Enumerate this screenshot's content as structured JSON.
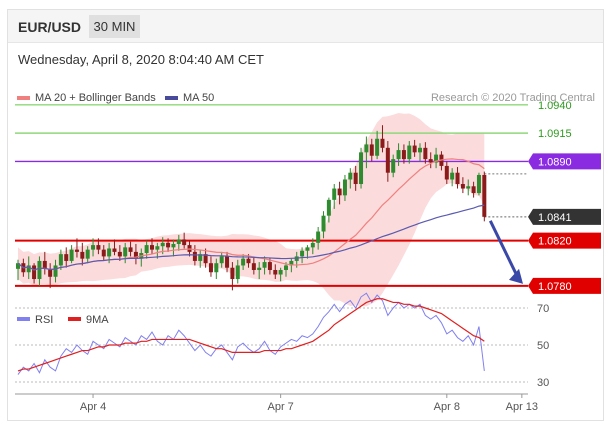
{
  "header": {
    "pair": "EUR/USD",
    "interval": "30 MIN"
  },
  "timestamp": "Wednesday, April 8, 2020 8:04:40 AM CET",
  "credit": "Research © 2020 Trading Central",
  "colors": {
    "candle_up": "#2e8b2e",
    "candle_down": "#8b1a1a",
    "bollinger_band": "#f9cfcf",
    "ma20": "#f08080",
    "ma50": "#5a5ab0",
    "resistance": "#8fd87a",
    "pivot": "#8a2be2",
    "support": "#e00000",
    "price": "#333333",
    "arrow": "#3a48a8",
    "rsi": "#8080f0",
    "rsi_ma": "#e02020"
  },
  "chart_data": [
    {
      "type": "candlestick",
      "title": "",
      "xlabel": "",
      "ylabel": "",
      "ylim": [
        1.0771,
        1.0954
      ],
      "x_ticks": [
        {
          "label": "Apr 4",
          "index": 14
        },
        {
          "label": "Apr 7",
          "index": 49
        },
        {
          "label": "Apr 8",
          "index": 80
        },
        {
          "label": "Apr 13",
          "index": 94
        }
      ],
      "legend": [
        {
          "label": "MA 20 + Bollinger Bands",
          "color": "#f08080"
        },
        {
          "label": "MA 50",
          "color": "#4a4a9c"
        }
      ],
      "levels": [
        {
          "label": "1.0940",
          "value": 1.094,
          "role": "resistance",
          "color": "#8fd87a",
          "tag": false
        },
        {
          "label": "1.0915",
          "value": 1.0915,
          "role": "resistance",
          "color": "#8fd87a",
          "tag": false
        },
        {
          "label": "1.0890",
          "value": 1.089,
          "role": "pivot",
          "color": "#8a2be2",
          "tag": true
        },
        {
          "label": "1.0820",
          "value": 1.082,
          "role": "support",
          "color": "#e00000",
          "tag": true
        },
        {
          "label": "1.0780",
          "value": 1.078,
          "role": "support",
          "color": "#e00000",
          "tag": true
        }
      ],
      "last_price": {
        "label": "1.0841",
        "value": 1.0841
      },
      "forecast_arrow": {
        "from": 1.0841,
        "to": 1.078,
        "direction": "down"
      },
      "series": [
        {
          "name": "EUR/USD",
          "points": [
            [
              1.0795,
              1.0803,
              1.0785,
              1.08
            ],
            [
              1.08,
              1.0804,
              1.0788,
              1.0792
            ],
            [
              1.0792,
              1.0806,
              1.0786,
              1.0798
            ],
            [
              1.0798,
              1.08,
              1.0782,
              1.0786
            ],
            [
              1.0786,
              1.0806,
              1.078,
              1.0802
            ],
            [
              1.0802,
              1.081,
              1.079,
              1.0795
            ],
            [
              1.0795,
              1.08,
              1.0778,
              1.0788
            ],
            [
              1.0788,
              1.0803,
              1.0783,
              1.0798
            ],
            [
              1.0798,
              1.0812,
              1.0794,
              1.0808
            ],
            [
              1.0808,
              1.0814,
              1.0796,
              1.0802
            ],
            [
              1.0802,
              1.0816,
              1.08,
              1.0812
            ],
            [
              1.0812,
              1.0822,
              1.0805,
              1.081
            ],
            [
              1.081,
              1.0818,
              1.0798,
              1.0804
            ],
            [
              1.0804,
              1.0815,
              1.08,
              1.0812
            ],
            [
              1.0812,
              1.0822,
              1.0806,
              1.0816
            ],
            [
              1.0816,
              1.0822,
              1.0808,
              1.0812
            ],
            [
              1.0812,
              1.0816,
              1.0802,
              1.0806
            ],
            [
              1.0806,
              1.0818,
              1.08,
              1.0813
            ],
            [
              1.0813,
              1.0821,
              1.0807,
              1.081
            ],
            [
              1.081,
              1.0816,
              1.0802,
              1.0806
            ],
            [
              1.0806,
              1.0818,
              1.08,
              1.0814
            ],
            [
              1.0814,
              1.0819,
              1.0806,
              1.081
            ],
            [
              1.081,
              1.0817,
              1.0799,
              1.0804
            ],
            [
              1.0804,
              1.0813,
              1.0797,
              1.0809
            ],
            [
              1.0809,
              1.082,
              1.0804,
              1.0816
            ],
            [
              1.0816,
              1.0822,
              1.0808,
              1.0812
            ],
            [
              1.0812,
              1.0818,
              1.0804,
              1.0815
            ],
            [
              1.0815,
              1.0823,
              1.0808,
              1.0818
            ],
            [
              1.0818,
              1.0822,
              1.081,
              1.0814
            ],
            [
              1.0814,
              1.0821,
              1.0806,
              1.0817
            ],
            [
              1.0817,
              1.0825,
              1.0811,
              1.0821
            ],
            [
              1.0821,
              1.0827,
              1.0813,
              1.0816
            ],
            [
              1.0816,
              1.082,
              1.0806,
              1.081
            ],
            [
              1.081,
              1.0816,
              1.0798,
              1.0802
            ],
            [
              1.0802,
              1.0812,
              1.0796,
              1.0808
            ],
            [
              1.0808,
              1.0813,
              1.0796,
              1.08
            ],
            [
              1.08,
              1.0806,
              1.0788,
              1.0792
            ],
            [
              1.0792,
              1.0804,
              1.0786,
              1.08
            ],
            [
              1.08,
              1.081,
              1.0796,
              1.0806
            ],
            [
              1.0806,
              1.081,
              1.0792,
              1.0796
            ],
            [
              1.0796,
              1.0801,
              1.0776,
              1.0786
            ],
            [
              1.0786,
              1.0803,
              1.0782,
              1.0798
            ],
            [
              1.0798,
              1.0808,
              1.0794,
              1.0804
            ],
            [
              1.0804,
              1.0808,
              1.0796,
              1.08
            ],
            [
              1.08,
              1.0806,
              1.079,
              1.0794
            ],
            [
              1.0794,
              1.0801,
              1.0786,
              1.0796
            ],
            [
              1.0796,
              1.0806,
              1.079,
              1.0801
            ],
            [
              1.0801,
              1.0805,
              1.079,
              1.0794
            ],
            [
              1.0794,
              1.0799,
              1.0786,
              1.079
            ],
            [
              1.079,
              1.0796,
              1.0784,
              1.0794
            ],
            [
              1.0794,
              1.0801,
              1.0788,
              1.0798
            ],
            [
              1.0798,
              1.0804,
              1.0792,
              1.0802
            ],
            [
              1.0802,
              1.081,
              1.0796,
              1.0806
            ],
            [
              1.0806,
              1.0814,
              1.08,
              1.0811
            ],
            [
              1.0811,
              1.0816,
              1.0804,
              1.0814
            ],
            [
              1.0814,
              1.0822,
              1.0808,
              1.0818
            ],
            [
              1.0818,
              1.0832,
              1.0812,
              1.0828
            ],
            [
              1.0828,
              1.0846,
              1.0822,
              1.0842
            ],
            [
              1.0842,
              1.0858,
              1.0836,
              1.0856
            ],
            [
              1.0856,
              1.087,
              1.0848,
              1.0866
            ],
            [
              1.0866,
              1.0872,
              1.0852,
              1.086
            ],
            [
              1.086,
              1.0878,
              1.0855,
              1.0874
            ],
            [
              1.0874,
              1.0884,
              1.0866,
              1.088
            ],
            [
              1.088,
              1.0886,
              1.0864,
              1.087
            ],
            [
              1.087,
              1.0902,
              1.0866,
              1.0898
            ],
            [
              1.0898,
              1.0912,
              1.0884,
              1.0905
            ],
            [
              1.0905,
              1.091,
              1.089,
              1.0895
            ],
            [
              1.0895,
              1.0917,
              1.0892,
              1.091
            ],
            [
              1.091,
              1.0922,
              1.0898,
              1.0902
            ],
            [
              1.0902,
              1.0908,
              1.0872,
              1.088
            ],
            [
              1.088,
              1.0896,
              1.0876,
              1.0892
            ],
            [
              1.0892,
              1.0906,
              1.0886,
              1.09
            ],
            [
              1.09,
              1.0905,
              1.0888,
              1.0892
            ],
            [
              1.0892,
              1.0908,
              1.0888,
              1.0904
            ],
            [
              1.0904,
              1.0909,
              1.0894,
              1.0898
            ],
            [
              1.0898,
              1.0906,
              1.089,
              1.0902
            ],
            [
              1.0902,
              1.0907,
              1.0888,
              1.0892
            ],
            [
              1.0892,
              1.0898,
              1.0884,
              1.0889
            ],
            [
              1.0889,
              1.0902,
              1.0884,
              1.0896
            ],
            [
              1.0896,
              1.0899,
              1.0882,
              1.0886
            ],
            [
              1.0886,
              1.089,
              1.087,
              1.0874
            ],
            [
              1.0874,
              1.0884,
              1.0868,
              1.088
            ],
            [
              1.088,
              1.0885,
              1.0866,
              1.087
            ],
            [
              1.087,
              1.0876,
              1.0862,
              1.0866
            ],
            [
              1.0866,
              1.0874,
              1.086,
              1.0868
            ],
            [
              1.0868,
              1.0872,
              1.0858,
              1.0862
            ],
            [
              1.0862,
              1.088,
              1.086,
              1.0878
            ],
            [
              1.0878,
              1.0881,
              1.0837,
              1.0841
            ]
          ]
        }
      ]
    },
    {
      "type": "line",
      "title": "",
      "xlabel": "",
      "ylabel": "",
      "ylim": [
        25,
        80
      ],
      "y_ticks": [
        "70",
        "50",
        "30"
      ],
      "legend": [
        {
          "label": "RSI",
          "color": "#8080f0"
        },
        {
          "label": "9MA",
          "color": "#e02020"
        }
      ],
      "series": [
        {
          "name": "RSI",
          "values": [
            34,
            38,
            36,
            40,
            35,
            42,
            38,
            36,
            44,
            48,
            46,
            50,
            47,
            45,
            52,
            50,
            48,
            53,
            51,
            49,
            54,
            52,
            50,
            55,
            53,
            57,
            52,
            50,
            55,
            53,
            58,
            55,
            51,
            47,
            50,
            46,
            44,
            48,
            50,
            46,
            42,
            49,
            51,
            48,
            46,
            48,
            52,
            47,
            45,
            49,
            51,
            53,
            52,
            55,
            54,
            56,
            60,
            65,
            68,
            72,
            68,
            72,
            74,
            70,
            76,
            78,
            73,
            77,
            74,
            66,
            70,
            73,
            70,
            72,
            70,
            72,
            66,
            64,
            66,
            62,
            56,
            58,
            54,
            52,
            55,
            50,
            60,
            36
          ]
        },
        {
          "name": "9MA",
          "values": [
            36,
            37,
            37,
            38,
            39,
            40,
            41,
            42,
            43,
            44,
            45,
            46,
            47,
            47,
            48,
            49,
            49,
            50,
            50,
            50,
            51,
            51,
            51,
            52,
            52,
            53,
            53,
            53,
            53,
            53,
            53,
            53,
            53,
            52,
            51,
            50,
            49,
            48,
            48,
            47,
            46,
            46,
            46,
            46,
            46,
            46,
            47,
            47,
            47,
            47,
            48,
            48,
            49,
            50,
            51,
            52,
            54,
            56,
            58,
            61,
            63,
            65,
            67,
            69,
            71,
            73,
            74,
            75,
            75,
            74,
            73,
            73,
            72,
            72,
            71,
            71,
            70,
            69,
            68,
            67,
            65,
            63,
            61,
            59,
            57,
            55,
            54,
            52
          ]
        }
      ]
    }
  ]
}
